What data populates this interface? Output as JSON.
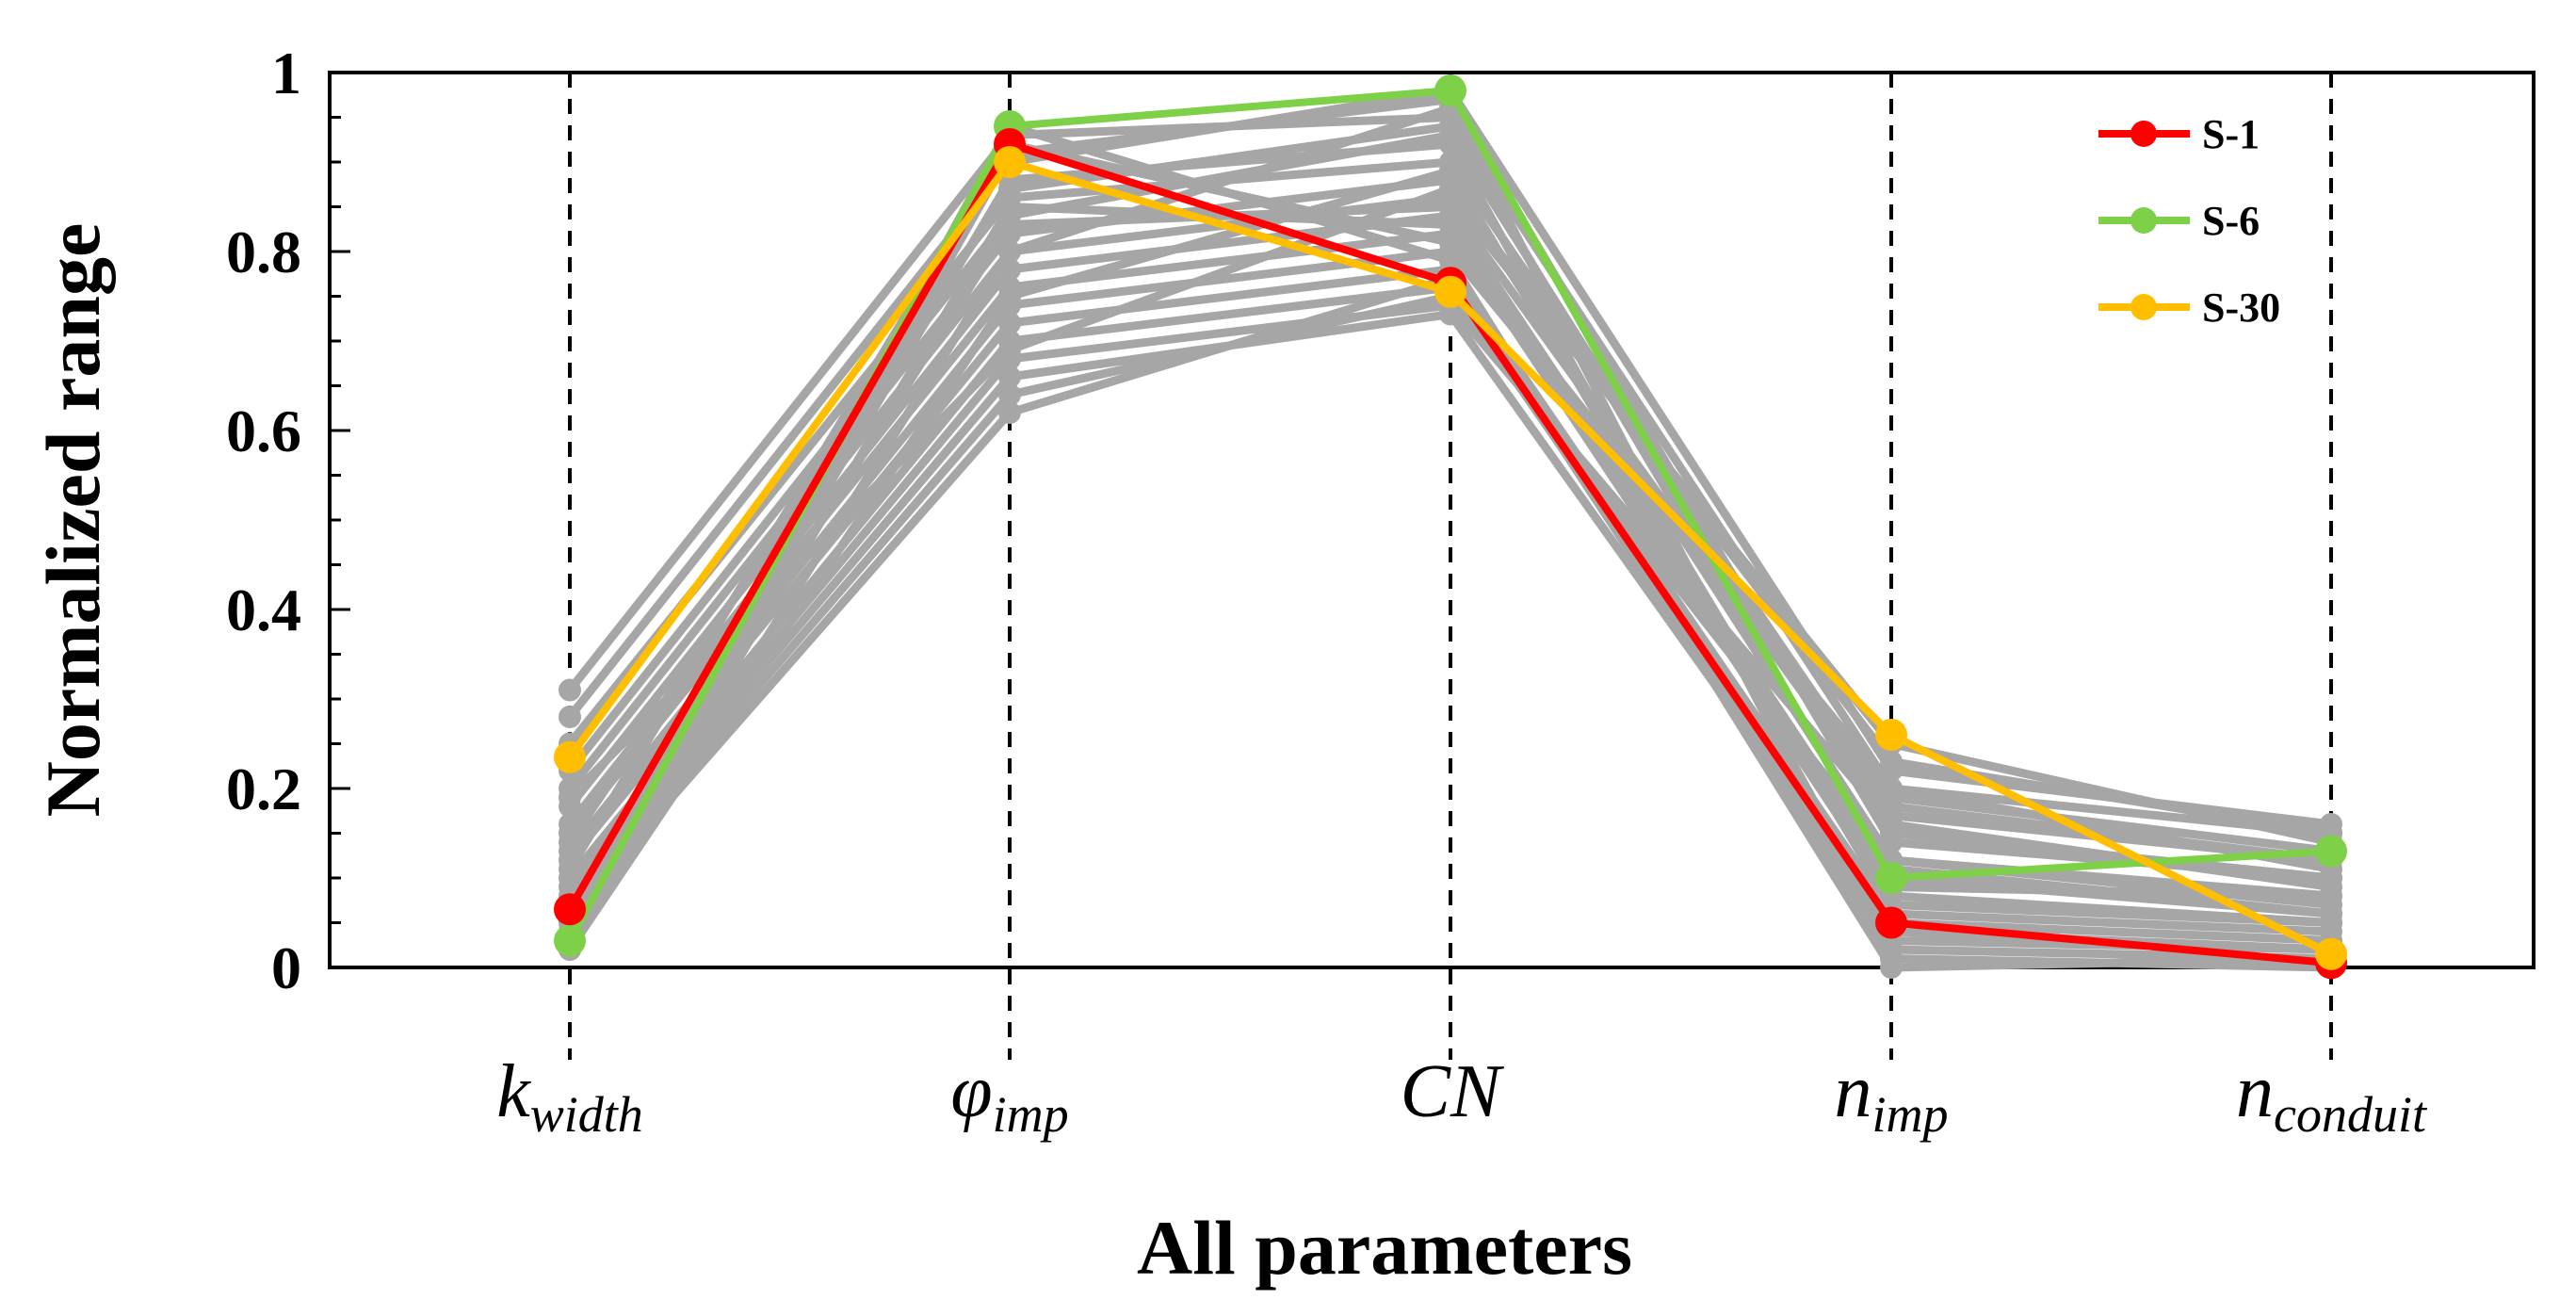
{
  "chart_data": {
    "type": "line",
    "title": "",
    "xlabel": "All parameters",
    "ylabel": "Normalized  range",
    "ylim": [
      0,
      1
    ],
    "yticks": [
      "0",
      "0.2",
      "0.4",
      "0.6",
      "0.8",
      "1"
    ],
    "yticks_values": [
      0,
      0.2,
      0.4,
      0.6,
      0.8,
      1
    ],
    "categories": [
      {
        "main": "k",
        "sub": "width"
      },
      {
        "main": "φ",
        "sub": "imp"
      },
      {
        "main": "CN",
        "sub": ""
      },
      {
        "main": "n",
        "sub": "imp"
      },
      {
        "main": "n",
        "sub": "conduit"
      }
    ],
    "legend_position": "top-right",
    "highlight_series": [
      {
        "name": "S-1",
        "color": "#ff0000",
        "values": [
          0.065,
          0.92,
          0.765,
          0.05,
          0.005
        ]
      },
      {
        "name": "S-6",
        "color": "#7dd047",
        "values": [
          0.03,
          0.94,
          0.98,
          0.1,
          0.13
        ]
      },
      {
        "name": "S-30",
        "color": "#ffbf00",
        "values": [
          0.235,
          0.9,
          0.755,
          0.26,
          0.015
        ]
      }
    ],
    "background_series_color": "#a6a6a6",
    "background_series": [
      [
        0.31,
        0.93,
        0.95,
        0.2,
        0.15
      ],
      [
        0.28,
        0.9,
        0.98,
        0.22,
        0.16
      ],
      [
        0.25,
        0.86,
        0.9,
        0.18,
        0.12
      ],
      [
        0.22,
        0.84,
        0.93,
        0.15,
        0.1
      ],
      [
        0.2,
        0.82,
        0.88,
        0.12,
        0.08
      ],
      [
        0.18,
        0.8,
        0.86,
        0.25,
        0.14
      ],
      [
        0.16,
        0.78,
        0.84,
        0.1,
        0.06
      ],
      [
        0.15,
        0.76,
        0.82,
        0.08,
        0.05
      ],
      [
        0.13,
        0.74,
        0.8,
        0.2,
        0.11
      ],
      [
        0.12,
        0.72,
        0.78,
        0.06,
        0.04
      ],
      [
        0.1,
        0.7,
        0.76,
        0.05,
        0.03
      ],
      [
        0.09,
        0.68,
        0.74,
        0.16,
        0.09
      ],
      [
        0.08,
        0.66,
        0.73,
        0.04,
        0.02
      ],
      [
        0.07,
        0.64,
        0.75,
        0.12,
        0.07
      ],
      [
        0.06,
        0.62,
        0.77,
        0.02,
        0.01
      ],
      [
        0.05,
        0.88,
        0.92,
        0.03,
        0.02
      ],
      [
        0.04,
        0.91,
        0.97,
        0.14,
        0.1
      ],
      [
        0.03,
        0.85,
        0.83,
        0.09,
        0.08
      ],
      [
        0.02,
        0.8,
        0.96,
        0.01,
        0.0
      ],
      [
        0.02,
        0.75,
        0.89,
        0.07,
        0.05
      ],
      [
        0.11,
        0.92,
        0.81,
        0.19,
        0.13
      ],
      [
        0.14,
        0.87,
        0.94,
        0.11,
        0.06
      ],
      [
        0.19,
        0.69,
        0.87,
        0.23,
        0.15
      ],
      [
        0.04,
        0.94,
        0.79,
        0.0,
        0.01
      ],
      [
        0.06,
        0.83,
        0.85,
        0.17,
        0.12
      ]
    ]
  }
}
